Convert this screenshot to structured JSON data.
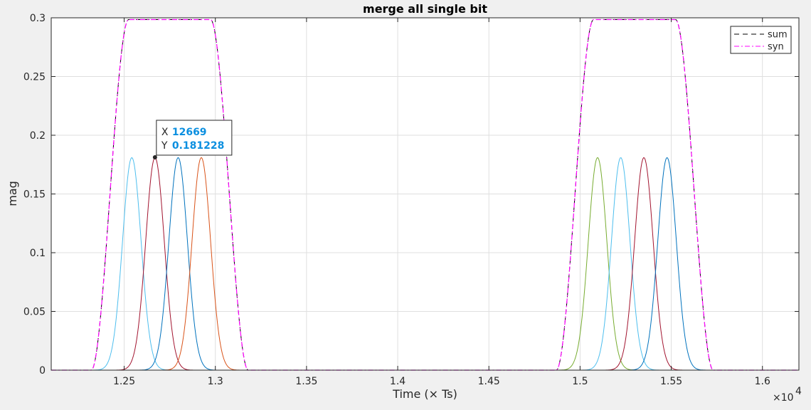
{
  "chart_data": {
    "type": "line",
    "title": "merge all single bit",
    "xlabel": "Time (× Ts)",
    "ylabel": "mag",
    "x_exponent_base": "×10",
    "x_exponent_power": "4",
    "xlim": [
      1.21,
      1.62
    ],
    "ylim": [
      0,
      0.3
    ],
    "x_ticks": [
      1.25,
      1.3,
      1.35,
      1.4,
      1.45,
      1.5,
      1.55,
      1.6
    ],
    "x_tick_labels": [
      "1.25",
      "1.3",
      "1.35",
      "1.4",
      "1.45",
      "1.5",
      "1.55",
      "1.6"
    ],
    "y_ticks": [
      0,
      0.05,
      0.1,
      0.15,
      0.2,
      0.25,
      0.3
    ],
    "y_tick_labels": [
      "0",
      "0.05",
      "0.1",
      "0.15",
      "0.2",
      "0.25",
      "0.3"
    ],
    "grid": true,
    "legend_position": "top-right",
    "legend": [
      {
        "label": "sum",
        "color": "#000000",
        "style": "dashed"
      },
      {
        "label": "syn",
        "color": "#ff00ff",
        "style": "dashdot"
      }
    ],
    "pulse_peak": 0.181,
    "pulse_sigma": 0.0051,
    "pulses": [
      {
        "center": 1.2542,
        "color": "#4dbeee"
      },
      {
        "center": 1.2669,
        "color": "#a2142f"
      },
      {
        "center": 1.2796,
        "color": "#0072bd"
      },
      {
        "center": 1.2923,
        "color": "#d95319"
      },
      {
        "center": 1.5096,
        "color": "#77ac30"
      },
      {
        "center": 1.5223,
        "color": "#4dbeee"
      },
      {
        "center": 1.535,
        "color": "#a2142f"
      },
      {
        "center": 1.5477,
        "color": "#0072bd"
      }
    ],
    "envelopes": [
      {
        "rise_start": 1.232,
        "plateau_start": 1.2524,
        "plateau_end": 1.2974,
        "fall_end": 1.318,
        "peak": 0.2985
      },
      {
        "rise_start": 1.487,
        "plateau_start": 1.5074,
        "plateau_end": 1.5524,
        "fall_end": 1.573,
        "peak": 0.2985
      }
    ],
    "datatip": {
      "x": 12669,
      "y": 0.181228,
      "x_label": "X",
      "y_label": "Y",
      "x_text": "12669",
      "y_text": "0.181228"
    }
  }
}
